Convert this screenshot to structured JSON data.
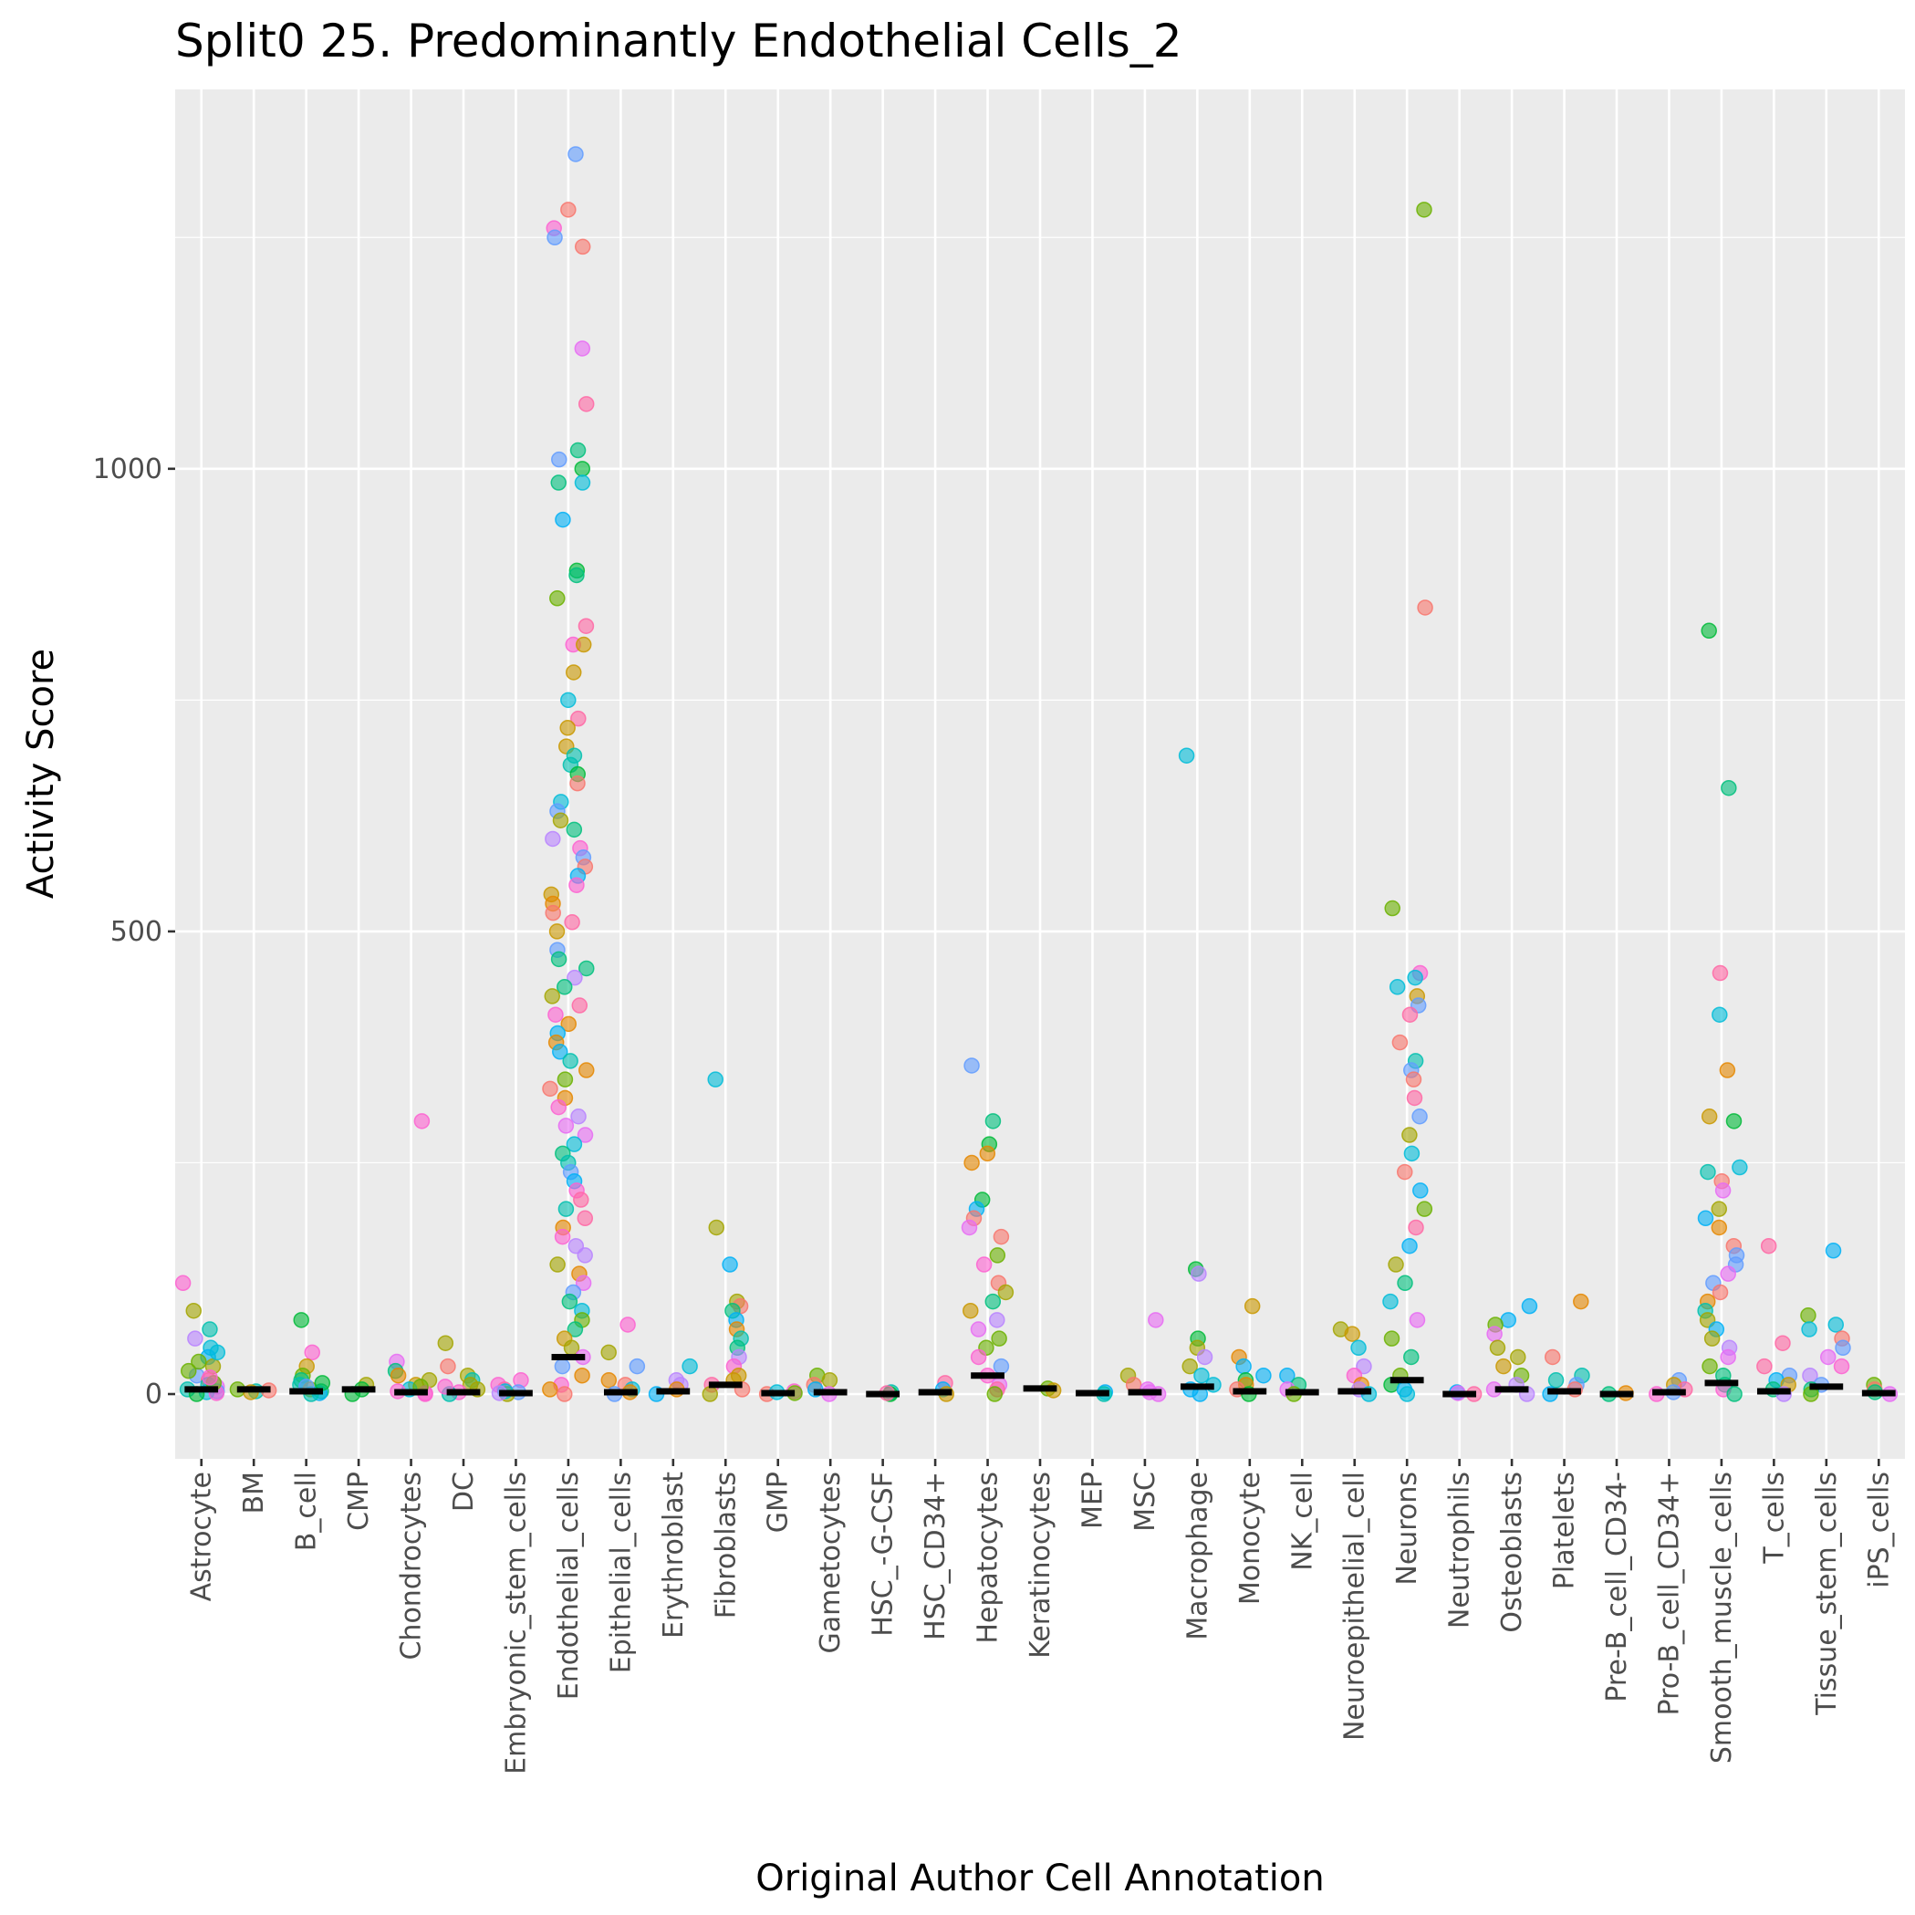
{
  "chart_data": {
    "type": "scatter",
    "title": "Split0 25. Predominantly Endothelial Cells_2",
    "xlabel": "Original Author Cell Annotation",
    "ylabel": "Activity Score",
    "ylim": [
      -70,
      1410
    ],
    "y_ticks": [
      0,
      500,
      1000
    ],
    "grid": true,
    "legend": "none",
    "categories": [
      "Astrocyte",
      "BM",
      "B_cell",
      "CMP",
      "Chondrocytes",
      "DC",
      "Embryonic_stem_cells",
      "Endothelial_cells",
      "Epithelial_cells",
      "Erythroblast",
      "Fibroblasts",
      "GMP",
      "Gametocytes",
      "HSC_-G-CSF",
      "HSC_CD34+",
      "Hepatocytes",
      "Keratinocytes",
      "MEP",
      "MSC",
      "Macrophage",
      "Monocyte",
      "NK_cell",
      "Neuroepithelial_cell",
      "Neurons",
      "Neutrophils",
      "Osteoblasts",
      "Platelets",
      "Pre-B_cell_CD34-",
      "Pro-B_cell_CD34+",
      "Smooth_muscle_cells",
      "T_cells",
      "Tissue_stem_cells",
      "iPS_cells"
    ],
    "medians": [
      5,
      5,
      3,
      5,
      2,
      2,
      1,
      40,
      2,
      3,
      10,
      1,
      2,
      0,
      2,
      20,
      6,
      1,
      2,
      8,
      3,
      2,
      3,
      15,
      0,
      5,
      3,
      0,
      2,
      12,
      3,
      8,
      1
    ],
    "points": [
      {
        "category": "Astrocyte",
        "values": [
          120,
          90,
          70,
          60,
          50,
          40,
          30,
          20,
          15,
          10,
          8,
          5,
          3,
          2,
          1,
          0,
          12,
          25,
          35,
          45,
          18
        ]
      },
      {
        "category": "BM",
        "values": [
          5,
          3,
          2,
          4
        ]
      },
      {
        "category": "B_cell",
        "values": [
          80,
          45,
          30,
          20,
          15,
          10,
          5,
          3,
          1,
          0,
          8,
          12
        ]
      },
      {
        "category": "CMP",
        "values": [
          10,
          5,
          0
        ]
      },
      {
        "category": "Chondrocytes",
        "values": [
          295,
          35,
          25,
          20,
          15,
          10,
          5,
          3,
          1,
          0,
          8
        ]
      },
      {
        "category": "DC",
        "values": [
          55,
          30,
          20,
          15,
          10,
          5,
          2,
          0,
          8
        ]
      },
      {
        "category": "Embryonic_stem_cells",
        "values": [
          15,
          10,
          5,
          2,
          0,
          3,
          1
        ]
      },
      {
        "category": "Endothelial_cells",
        "values": [
          1340,
          1280,
          1260,
          1250,
          1240,
          1130,
          1070,
          1020,
          1010,
          1000,
          985,
          985,
          945,
          890,
          885,
          860,
          830,
          810,
          810,
          780,
          750,
          730,
          720,
          700,
          690,
          680,
          670,
          660,
          640,
          630,
          620,
          610,
          600,
          590,
          580,
          570,
          560,
          550,
          540,
          530,
          520,
          510,
          500,
          480,
          470,
          460,
          450,
          440,
          430,
          420,
          410,
          400,
          390,
          380,
          370,
          360,
          350,
          340,
          330,
          320,
          310,
          300,
          290,
          280,
          270,
          260,
          250,
          240,
          230,
          220,
          210,
          200,
          190,
          180,
          170,
          160,
          150,
          140,
          130,
          120,
          110,
          100,
          90,
          80,
          70,
          60,
          50,
          40,
          30,
          20,
          10,
          5,
          0
        ]
      },
      {
        "category": "Epithelial_cells",
        "values": [
          75,
          45,
          30,
          15,
          10,
          5,
          2,
          0
        ]
      },
      {
        "category": "Erythroblast",
        "values": [
          30,
          15,
          10,
          5,
          0
        ]
      },
      {
        "category": "Fibroblasts",
        "values": [
          340,
          180,
          140,
          100,
          95,
          90,
          80,
          70,
          60,
          50,
          40,
          30,
          20,
          15,
          10,
          5,
          0
        ]
      },
      {
        "category": "GMP",
        "values": [
          3,
          1,
          0,
          2
        ]
      },
      {
        "category": "Gametocytes",
        "values": [
          20,
          15,
          10,
          5,
          0
        ]
      },
      {
        "category": "HSC_-G-CSF",
        "values": [
          2,
          0,
          1
        ]
      },
      {
        "category": "HSC_CD34+",
        "values": [
          12,
          5,
          0
        ]
      },
      {
        "category": "Hepatocytes",
        "values": [
          355,
          295,
          270,
          260,
          250,
          210,
          200,
          190,
          180,
          170,
          150,
          140,
          120,
          110,
          100,
          90,
          80,
          70,
          60,
          50,
          40,
          30,
          20,
          10,
          5,
          0
        ]
      },
      {
        "category": "Keratinocytes",
        "values": [
          6,
          4
        ]
      },
      {
        "category": "MEP",
        "values": [
          2,
          0
        ]
      },
      {
        "category": "MSC",
        "values": [
          80,
          20,
          10,
          5,
          2,
          0
        ]
      },
      {
        "category": "Macrophage",
        "values": [
          690,
          135,
          130,
          60,
          50,
          40,
          30,
          20,
          10,
          5,
          0
        ]
      },
      {
        "category": "Monocyte",
        "values": [
          95,
          40,
          30,
          20,
          15,
          10,
          5,
          0
        ]
      },
      {
        "category": "NK_cell",
        "values": [
          20,
          10,
          5,
          0
        ]
      },
      {
        "category": "Neuroepithelial_cell",
        "values": [
          70,
          65,
          50,
          30,
          20,
          10,
          5,
          0
        ]
      },
      {
        "category": "Neurons",
        "values": [
          1280,
          850,
          525,
          455,
          450,
          440,
          430,
          420,
          410,
          380,
          360,
          350,
          340,
          320,
          300,
          280,
          260,
          240,
          220,
          200,
          180,
          160,
          140,
          120,
          100,
          80,
          60,
          40,
          20,
          10,
          5,
          0
        ]
      },
      {
        "category": "Neutrophils",
        "values": [
          2,
          0,
          1
        ]
      },
      {
        "category": "Osteoblasts",
        "values": [
          95,
          80,
          75,
          65,
          50,
          40,
          30,
          20,
          10,
          5,
          0
        ]
      },
      {
        "category": "Platelets",
        "values": [
          100,
          40,
          20,
          15,
          10,
          5,
          0
        ]
      },
      {
        "category": "Pre-B_cell_CD34-",
        "values": [
          1,
          0
        ]
      },
      {
        "category": "Pro-B_cell_CD34+",
        "values": [
          15,
          10,
          5,
          2,
          0
        ]
      },
      {
        "category": "Smooth_muscle_cells",
        "values": [
          825,
          655,
          455,
          410,
          350,
          300,
          295,
          245,
          240,
          230,
          220,
          200,
          190,
          180,
          160,
          150,
          140,
          130,
          120,
          110,
          100,
          90,
          80,
          70,
          60,
          50,
          40,
          30,
          20,
          10,
          5,
          0
        ]
      },
      {
        "category": "T_cells",
        "values": [
          160,
          55,
          30,
          20,
          15,
          10,
          5,
          0
        ]
      },
      {
        "category": "Tissue_stem_cells",
        "values": [
          155,
          85,
          75,
          70,
          60,
          50,
          40,
          30,
          20,
          10,
          5,
          0
        ]
      },
      {
        "category": "iPS_cells",
        "values": [
          10,
          5,
          2,
          0
        ]
      }
    ],
    "palette": [
      "#F8766D",
      "#E58700",
      "#C99800",
      "#A3A500",
      "#6BB100",
      "#00BA38",
      "#00BF7D",
      "#00C0AF",
      "#00BCD8",
      "#00B0F6",
      "#619CFF",
      "#B983FF",
      "#E76BF3",
      "#FD61D1",
      "#FF67A4"
    ],
    "colors": {
      "panel": "#EBEBEB",
      "grid_major": "#FFFFFF",
      "median": "#000000",
      "text": "#000000",
      "tick_text": "#4D4D4D",
      "tick": "#333333"
    }
  }
}
